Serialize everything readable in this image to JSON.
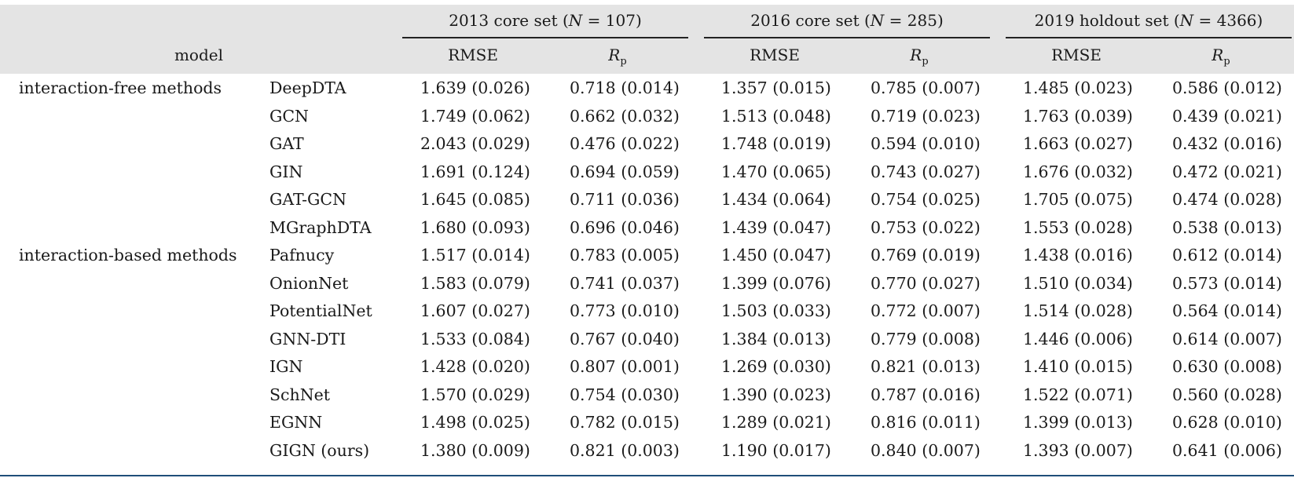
{
  "header": {
    "model_label": "model",
    "groups": [
      {
        "prefix": "2013 core set (",
        "n_var": "N",
        "suffix": " = 107)"
      },
      {
        "prefix": "2016 core set (",
        "n_var": "N",
        "suffix": " = 285)"
      },
      {
        "prefix": "2019 holdout set (",
        "n_var": "N",
        "suffix": " = 4366)"
      }
    ],
    "metric_rmse": "RMSE",
    "metric_rp_main": "R",
    "metric_rp_sub": "p"
  },
  "rows": [
    {
      "category": "interaction-free methods",
      "model": "DeepDTA",
      "v": [
        "1.639 (0.026)",
        "0.718 (0.014)",
        "1.357 (0.015)",
        "0.785 (0.007)",
        "1.485 (0.023)",
        "0.586 (0.012)"
      ]
    },
    {
      "category": "",
      "model": "GCN",
      "v": [
        "1.749 (0.062)",
        "0.662 (0.032)",
        "1.513 (0.048)",
        "0.719 (0.023)",
        "1.763 (0.039)",
        "0.439 (0.021)"
      ]
    },
    {
      "category": "",
      "model": "GAT",
      "v": [
        "2.043 (0.029)",
        "0.476 (0.022)",
        "1.748 (0.019)",
        "0.594 (0.010)",
        "1.663 (0.027)",
        "0.432 (0.016)"
      ]
    },
    {
      "category": "",
      "model": "GIN",
      "v": [
        "1.691 (0.124)",
        "0.694 (0.059)",
        "1.470 (0.065)",
        "0.743 (0.027)",
        "1.676 (0.032)",
        "0.472 (0.021)"
      ]
    },
    {
      "category": "",
      "model": "GAT-GCN",
      "v": [
        "1.645 (0.085)",
        "0.711 (0.036)",
        "1.434 (0.064)",
        "0.754 (0.025)",
        "1.705 (0.075)",
        "0.474 (0.028)"
      ]
    },
    {
      "category": "",
      "model": "MGraphDTA",
      "v": [
        "1.680 (0.093)",
        "0.696 (0.046)",
        "1.439 (0.047)",
        "0.753 (0.022)",
        "1.553 (0.028)",
        "0.538 (0.013)"
      ]
    },
    {
      "category": "interaction-based methods",
      "model": "Pafnucy",
      "v": [
        "1.517 (0.014)",
        "0.783 (0.005)",
        "1.450 (0.047)",
        "0.769 (0.019)",
        "1.438 (0.016)",
        "0.612 (0.014)"
      ]
    },
    {
      "category": "",
      "model": "OnionNet",
      "v": [
        "1.583 (0.079)",
        "0.741 (0.037)",
        "1.399 (0.076)",
        "0.770 (0.027)",
        "1.510 (0.034)",
        "0.573 (0.014)"
      ]
    },
    {
      "category": "",
      "model": "PotentialNet",
      "v": [
        "1.607 (0.027)",
        "0.773 (0.010)",
        "1.503 (0.033)",
        "0.772 (0.007)",
        "1.514 (0.028)",
        "0.564 (0.014)"
      ]
    },
    {
      "category": "",
      "model": "GNN-DTI",
      "v": [
        "1.533 (0.084)",
        "0.767 (0.040)",
        "1.384 (0.013)",
        "0.779 (0.008)",
        "1.446 (0.006)",
        "0.614 (0.007)"
      ]
    },
    {
      "category": "",
      "model": "IGN",
      "v": [
        "1.428 (0.020)",
        "0.807 (0.001)",
        "1.269 (0.030)",
        "0.821 (0.013)",
        "1.410 (0.015)",
        "0.630 (0.008)"
      ]
    },
    {
      "category": "",
      "model": "SchNet",
      "v": [
        "1.570 (0.029)",
        "0.754 (0.030)",
        "1.390 (0.023)",
        "0.787 (0.016)",
        "1.522 (0.071)",
        "0.560 (0.028)"
      ]
    },
    {
      "category": "",
      "model": "EGNN",
      "v": [
        "1.498 (0.025)",
        "0.782 (0.015)",
        "1.289 (0.021)",
        "0.816 (0.011)",
        "1.399 (0.013)",
        "0.628 (0.010)"
      ]
    },
    {
      "category": "",
      "model": "GIGN (ours)",
      "v": [
        "1.380 (0.009)",
        "0.821 (0.003)",
        "1.190 (0.017)",
        "0.840 (0.007)",
        "1.393 (0.007)",
        "0.641 (0.006)"
      ]
    }
  ],
  "colors": {
    "header_bg": "#e4e4e4",
    "bottom_rule": "#1f4e79"
  }
}
